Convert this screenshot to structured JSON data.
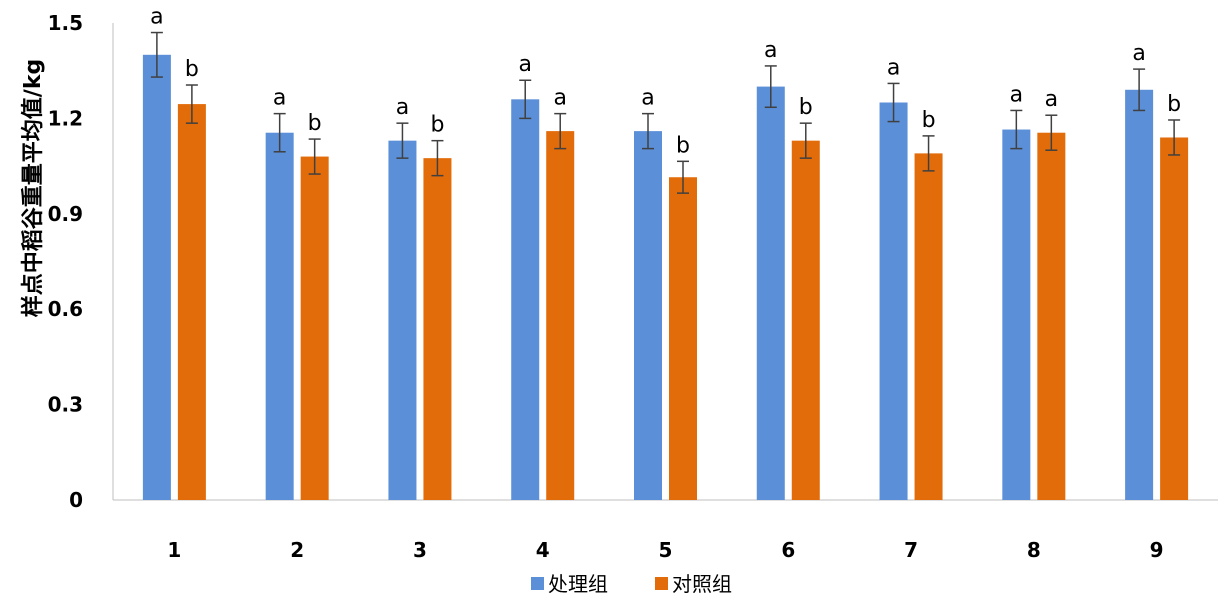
{
  "chart_data": {
    "type": "bar",
    "title": "",
    "xlabel": "",
    "ylabel": "样点中稻谷重量平均值/kg",
    "ylim": [
      0,
      1.5
    ],
    "yticks": [
      0,
      0.3,
      0.6,
      0.9,
      1.2,
      1.5
    ],
    "ytick_labels": [
      "0",
      "0.3",
      "0.6",
      "0.9",
      "1.2",
      "1.5"
    ],
    "grid": false,
    "legend_position": "bottom",
    "categories": [
      "1",
      "2",
      "3",
      "4",
      "5",
      "6",
      "7",
      "8",
      "9"
    ],
    "series": [
      {
        "name": "处理组",
        "color": "#5B8FD8",
        "values": [
          1.4,
          1.155,
          1.13,
          1.26,
          1.16,
          1.3,
          1.25,
          1.165,
          1.29
        ],
        "error": [
          0.07,
          0.06,
          0.055,
          0.06,
          0.055,
          0.065,
          0.06,
          0.06,
          0.065
        ],
        "significance": [
          "a",
          "a",
          "a",
          "a",
          "a",
          "a",
          "a",
          "a",
          "a"
        ]
      },
      {
        "name": "对照组",
        "color": "#E36C0A",
        "values": [
          1.245,
          1.08,
          1.075,
          1.16,
          1.015,
          1.13,
          1.09,
          1.155,
          1.14
        ],
        "error": [
          0.06,
          0.055,
          0.055,
          0.055,
          0.05,
          0.055,
          0.055,
          0.055,
          0.055
        ],
        "significance": [
          "b",
          "b",
          "b",
          "a",
          "b",
          "b",
          "b",
          "a",
          "b"
        ]
      }
    ]
  }
}
